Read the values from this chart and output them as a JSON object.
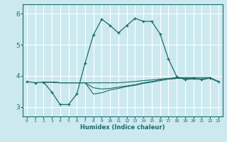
{
  "xlabel": "Humidex (Indice chaleur)",
  "ylabel": "",
  "bg_color": "#cce9f0",
  "grid_color": "#ffffff",
  "line_color": "#1a6b6b",
  "xlim": [
    -0.5,
    23.5
  ],
  "ylim": [
    2.7,
    6.3
  ],
  "yticks": [
    3,
    4,
    5,
    6
  ],
  "xticks": [
    0,
    1,
    2,
    3,
    4,
    5,
    6,
    7,
    8,
    9,
    10,
    11,
    12,
    13,
    14,
    15,
    16,
    17,
    18,
    19,
    20,
    21,
    22,
    23
  ],
  "line1_x": [
    0,
    1,
    2,
    3,
    4,
    5,
    6,
    7,
    8,
    9,
    10,
    11,
    12,
    13,
    14,
    15,
    16,
    17,
    18,
    19,
    20,
    21,
    22,
    23
  ],
  "line1_y": [
    3.82,
    3.78,
    3.8,
    3.48,
    3.08,
    3.08,
    3.42,
    4.42,
    5.32,
    5.82,
    5.62,
    5.38,
    5.62,
    5.85,
    5.75,
    5.75,
    5.35,
    4.55,
    3.98,
    3.88,
    3.92,
    3.88,
    3.93,
    3.82
  ],
  "line2_x": [
    2,
    3,
    4,
    5,
    6,
    7,
    8,
    9,
    10,
    11,
    12,
    13,
    14,
    15,
    16,
    17,
    18,
    19,
    20,
    21,
    22,
    23
  ],
  "line2_y": [
    3.8,
    3.8,
    3.78,
    3.78,
    3.78,
    3.78,
    3.78,
    3.78,
    3.78,
    3.78,
    3.8,
    3.82,
    3.85,
    3.87,
    3.9,
    3.92,
    3.95,
    3.95,
    3.95,
    3.95,
    3.95,
    3.82
  ],
  "line3_x": [
    2,
    3,
    4,
    5,
    6,
    7,
    8,
    9,
    10,
    11,
    12,
    13,
    14,
    15,
    16,
    17,
    18,
    19,
    20,
    21,
    22,
    23
  ],
  "line3_y": [
    3.8,
    3.8,
    3.78,
    3.78,
    3.78,
    3.78,
    3.42,
    3.46,
    3.55,
    3.6,
    3.66,
    3.7,
    3.76,
    3.8,
    3.85,
    3.9,
    3.92,
    3.92,
    3.9,
    3.9,
    3.93,
    3.82
  ],
  "line4_x": [
    2,
    3,
    4,
    5,
    6,
    7,
    8,
    9,
    10,
    11,
    12,
    13,
    14,
    15,
    16,
    17,
    18,
    19,
    20,
    21,
    22,
    23
  ],
  "line4_y": [
    3.8,
    3.8,
    3.78,
    3.78,
    3.78,
    3.78,
    3.62,
    3.58,
    3.6,
    3.64,
    3.68,
    3.72,
    3.78,
    3.82,
    3.87,
    3.9,
    3.92,
    3.92,
    3.92,
    3.9,
    3.93,
    3.82
  ]
}
